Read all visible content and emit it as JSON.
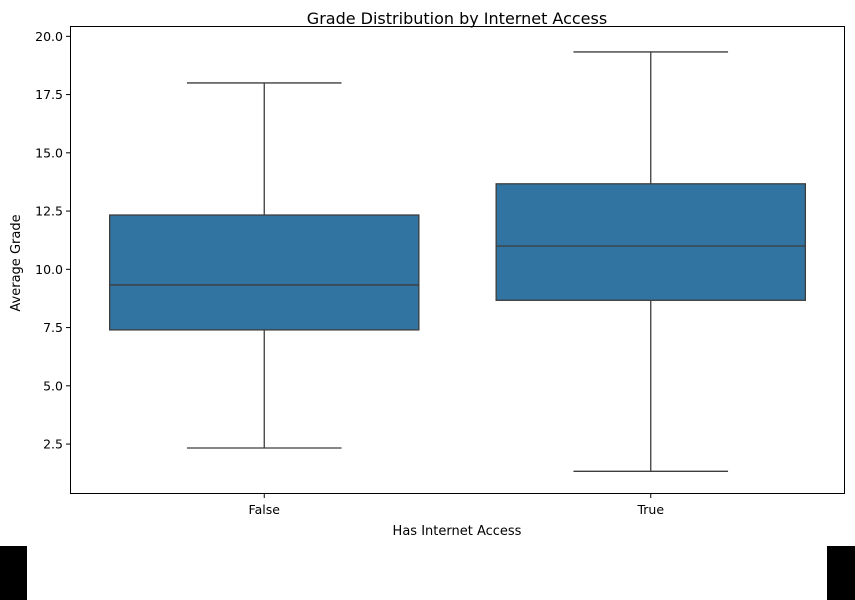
{
  "chart_data": {
    "type": "box",
    "title": "Grade Distribution by Internet Access",
    "xlabel": "Has Internet Access",
    "ylabel": "Average Grade",
    "categories": [
      "False",
      "True"
    ],
    "boxes": [
      {
        "category": "False",
        "whisker_low": 2.33,
        "q1": 7.4,
        "median": 9.33,
        "q3": 12.33,
        "whisker_high": 18.0
      },
      {
        "category": "True",
        "whisker_low": 1.33,
        "q1": 8.67,
        "median": 11.0,
        "q3": 13.67,
        "whisker_high": 19.33
      }
    ],
    "ylim": [
      0.4,
      20.4
    ],
    "yticks": [
      2.5,
      5.0,
      7.5,
      10.0,
      12.5,
      15.0,
      17.5,
      20.0
    ],
    "ytick_labels": [
      "2.5",
      "5.0",
      "7.5",
      "10.0",
      "12.5",
      "15.0",
      "17.5",
      "20.0"
    ],
    "grid": false,
    "colors": {
      "box_fill": "#3274a1",
      "line": "#3d3d3d",
      "axis": "#000000"
    }
  }
}
